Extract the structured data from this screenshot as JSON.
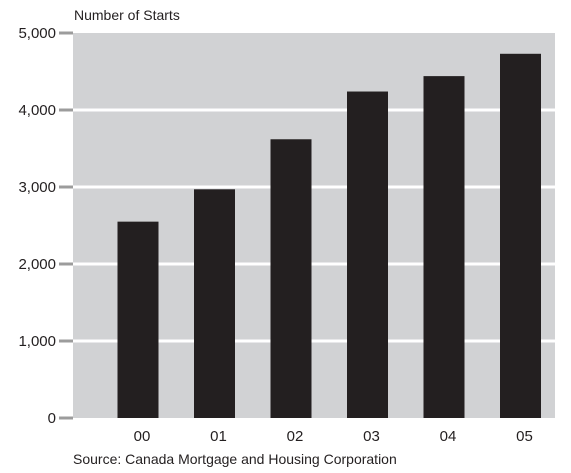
{
  "chart_data": {
    "type": "bar",
    "ylabel": "Number of Starts",
    "categories": [
      "00",
      "01",
      "02",
      "03",
      "04",
      "05"
    ],
    "values": [
      2550,
      2970,
      3620,
      4240,
      4440,
      4730
    ],
    "ylim": [
      0,
      5000
    ],
    "yticks": [
      0,
      1000,
      2000,
      3000,
      4000,
      5000
    ],
    "ytick_labels": [
      "0",
      "1,000",
      "2,000",
      "3,000",
      "4,000",
      "5,000"
    ],
    "grid": true,
    "source": "Source: Canada Mortgage and Housing Corporation",
    "colors": {
      "plot_background": "#d1d2d4",
      "bar": "#231f20",
      "gridline": "#ffffff"
    }
  }
}
